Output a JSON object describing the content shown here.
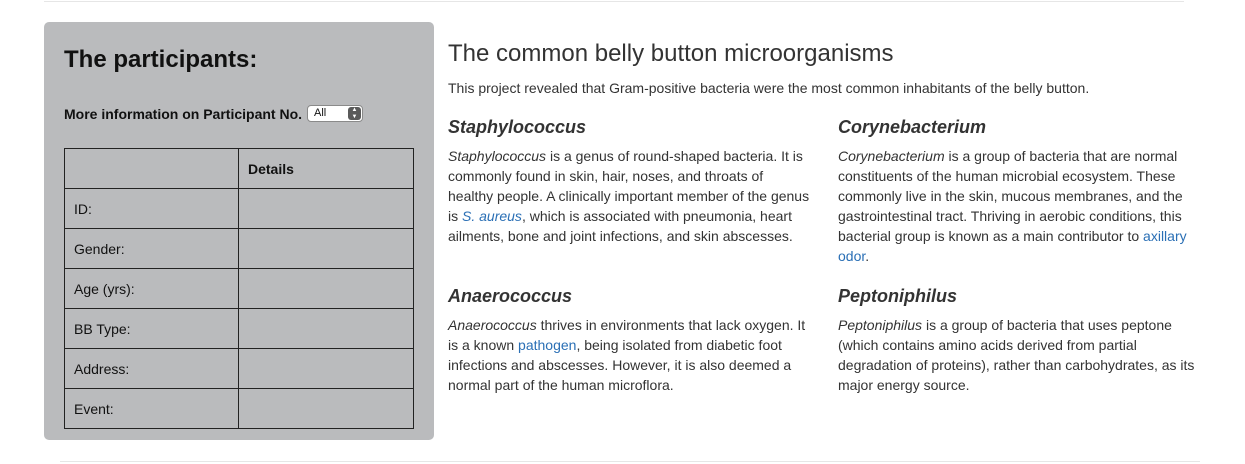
{
  "sidebar": {
    "title": "The participants:",
    "select_label": "More information on Participant No.",
    "select_value": "All",
    "table": {
      "header": "Details",
      "rows": [
        {
          "label": "ID:",
          "value": ""
        },
        {
          "label": "Gender:",
          "value": ""
        },
        {
          "label": "Age (yrs):",
          "value": ""
        },
        {
          "label": "BB Type:",
          "value": ""
        },
        {
          "label": "Address:",
          "value": ""
        },
        {
          "label": "Event:",
          "value": ""
        }
      ]
    }
  },
  "main": {
    "title": "The common belly button microorganisms",
    "intro": "This project revealed that Gram-positive bacteria were the most common inhabitants of the belly button.",
    "cards": {
      "staph": {
        "heading": "Staphylococcus",
        "italic": "Staphylococcus",
        "text_a": " is a genus of round-shaped bacteria. It is commonly found in skin, hair, noses, and throats of healthy people. A clinically important member of the genus is ",
        "link": "S. aureus",
        "text_b": ", which is associated with pneumonia, heart ailments, bone and joint infections, and skin abscesses."
      },
      "coryne": {
        "heading": "Corynebacterium",
        "italic": "Corynebacterium",
        "text_a": " is a group of bacteria that are normal constituents of the human microbial ecosystem. These commonly live in the skin, mucous membranes, and the gastrointestinal tract. Thriving in aerobic conditions, this bacterial group is known as a main contributor to ",
        "link": "axillary odor",
        "text_b": "."
      },
      "anaero": {
        "heading": "Anaerococcus",
        "italic": "Anaerococcus",
        "text_a": " thrives in environments that lack oxygen. It is a known ",
        "link": "pathogen",
        "text_b": ", being isolated from diabetic foot infections and abscesses. However, it is also deemed a normal part of the human microflora."
      },
      "pepto": {
        "heading": "Peptoniphilus",
        "italic": "Peptoniphilus",
        "text_a": " is a group of bacteria that uses peptone (which contains amino acids derived from partial degradation of proteins), rather than carbohydrates, as its major energy source."
      }
    }
  }
}
